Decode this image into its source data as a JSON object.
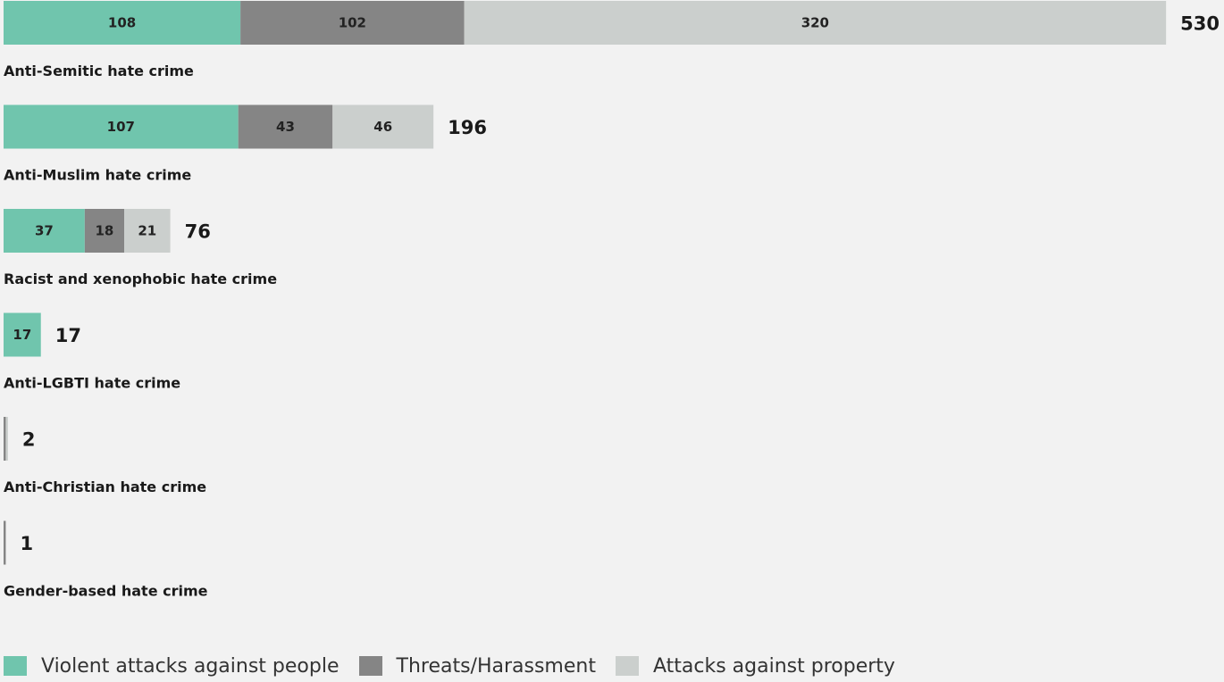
{
  "chart_data": {
    "type": "bar",
    "orientation": "horizontal",
    "stacked": true,
    "categories": [
      "Anti-Semitic hate crime",
      "Anti-Muslim hate crime",
      "Racist and xenophobic hate crime",
      "Anti-LGBTI hate crime",
      "Anti-Christian hate crime",
      "Gender-based hate crime"
    ],
    "series": [
      {
        "name": "Violent attacks against people",
        "color": "#70c5ad",
        "values": [
          108,
          107,
          37,
          17,
          0,
          0
        ]
      },
      {
        "name": "Threats/Harassment",
        "color": "#858585",
        "values": [
          102,
          43,
          18,
          0,
          1,
          1
        ]
      },
      {
        "name": "Attacks against property",
        "color": "#cbcfcd",
        "values": [
          320,
          46,
          21,
          0,
          1,
          0
        ]
      }
    ],
    "totals": [
      530,
      196,
      76,
      17,
      2,
      1
    ],
    "segment_labels_shown": [
      [
        "108",
        "102",
        "320"
      ],
      [
        "107",
        "43",
        "46"
      ],
      [
        "37",
        "18",
        "21"
      ],
      [
        "17",
        "",
        ""
      ],
      [
        "",
        "",
        ""
      ],
      [
        "",
        "",
        ""
      ]
    ],
    "legend_position": "bottom-left",
    "grid": false
  }
}
